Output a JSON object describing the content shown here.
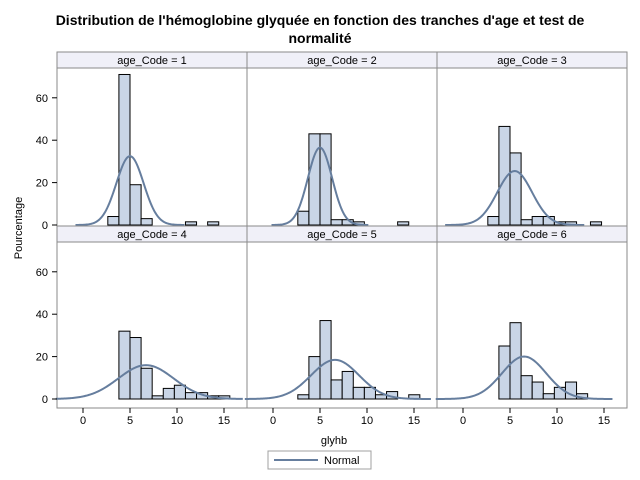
{
  "chart_data": {
    "type": "bar",
    "title_line1": "Distribution de l'hémoglobine glyquée en fonction des tranches d'age et test de",
    "title_line2": "normalité",
    "xlabel": "glyhb",
    "ylabel": "Pourcentage",
    "xlim": [
      -3,
      17
    ],
    "ylim": [
      0,
      75
    ],
    "x_ticks": [
      0,
      5,
      10,
      15
    ],
    "y_ticks": [
      0,
      20,
      40,
      60
    ],
    "bin_width": 1.18,
    "legend": {
      "label": "Normal",
      "placement": "bottom-center"
    },
    "colors": {
      "bar_fill": "#c9d5e6",
      "bar_edge": "#000000",
      "curve": "#667e9e",
      "header_bg": "#f0f0f8",
      "frame": "#8a8a8a"
    },
    "panels": [
      {
        "label": "age_Code = 1",
        "bins": [
          {
            "x": 3.23,
            "y": 4
          },
          {
            "x": 4.41,
            "y": 71
          },
          {
            "x": 5.59,
            "y": 19
          },
          {
            "x": 6.77,
            "y": 3
          },
          {
            "x": 11.49,
            "y": 1.5
          },
          {
            "x": 13.85,
            "y": 1.5
          }
        ],
        "normal": {
          "mean": 5.0,
          "sd": 1.45
        }
      },
      {
        "label": "age_Code = 2",
        "bins": [
          {
            "x": 3.23,
            "y": 6.5
          },
          {
            "x": 4.41,
            "y": 43
          },
          {
            "x": 5.59,
            "y": 43
          },
          {
            "x": 6.77,
            "y": 2.5
          },
          {
            "x": 7.95,
            "y": 2.5
          },
          {
            "x": 9.13,
            "y": 1.5
          },
          {
            "x": 13.85,
            "y": 1.5
          }
        ],
        "normal": {
          "mean": 5.0,
          "sd": 1.29
        }
      },
      {
        "label": "age_Code = 3",
        "bins": [
          {
            "x": 3.23,
            "y": 4
          },
          {
            "x": 4.41,
            "y": 46.5
          },
          {
            "x": 5.59,
            "y": 34
          },
          {
            "x": 6.77,
            "y": 2.5
          },
          {
            "x": 7.95,
            "y": 4
          },
          {
            "x": 9.13,
            "y": 4
          },
          {
            "x": 10.31,
            "y": 1.5
          },
          {
            "x": 11.49,
            "y": 1.5
          },
          {
            "x": 14.15,
            "y": 1.5
          }
        ],
        "normal": {
          "mean": 5.5,
          "sd": 1.85
        }
      },
      {
        "label": "age_Code = 4",
        "bins": [
          {
            "x": 4.41,
            "y": 32
          },
          {
            "x": 5.59,
            "y": 29
          },
          {
            "x": 6.77,
            "y": 14.5
          },
          {
            "x": 7.95,
            "y": 1.5
          },
          {
            "x": 9.13,
            "y": 5
          },
          {
            "x": 10.31,
            "y": 6.5
          },
          {
            "x": 11.49,
            "y": 3
          },
          {
            "x": 12.67,
            "y": 3
          },
          {
            "x": 13.85,
            "y": 1.5
          },
          {
            "x": 15.03,
            "y": 1.5
          }
        ],
        "normal": {
          "mean": 6.7,
          "sd": 2.95
        }
      },
      {
        "label": "age_Code = 5",
        "bins": [
          {
            "x": 3.23,
            "y": 2
          },
          {
            "x": 4.41,
            "y": 20
          },
          {
            "x": 5.59,
            "y": 37
          },
          {
            "x": 6.77,
            "y": 9
          },
          {
            "x": 7.95,
            "y": 13
          },
          {
            "x": 9.13,
            "y": 5.5
          },
          {
            "x": 10.31,
            "y": 5.5
          },
          {
            "x": 11.49,
            "y": 2
          },
          {
            "x": 12.67,
            "y": 3.5
          },
          {
            "x": 15.03,
            "y": 2
          }
        ],
        "normal": {
          "mean": 6.6,
          "sd": 2.55
        }
      },
      {
        "label": "age_Code = 6",
        "bins": [
          {
            "x": 3.23,
            "y": 0
          },
          {
            "x": 4.41,
            "y": 25
          },
          {
            "x": 5.59,
            "y": 36
          },
          {
            "x": 6.77,
            "y": 11
          },
          {
            "x": 7.95,
            "y": 8
          },
          {
            "x": 9.13,
            "y": 2.5
          },
          {
            "x": 10.31,
            "y": 5.5
          },
          {
            "x": 11.49,
            "y": 8
          },
          {
            "x": 12.67,
            "y": 2.5
          }
        ],
        "normal": {
          "mean": 6.5,
          "sd": 2.35
        }
      }
    ]
  }
}
